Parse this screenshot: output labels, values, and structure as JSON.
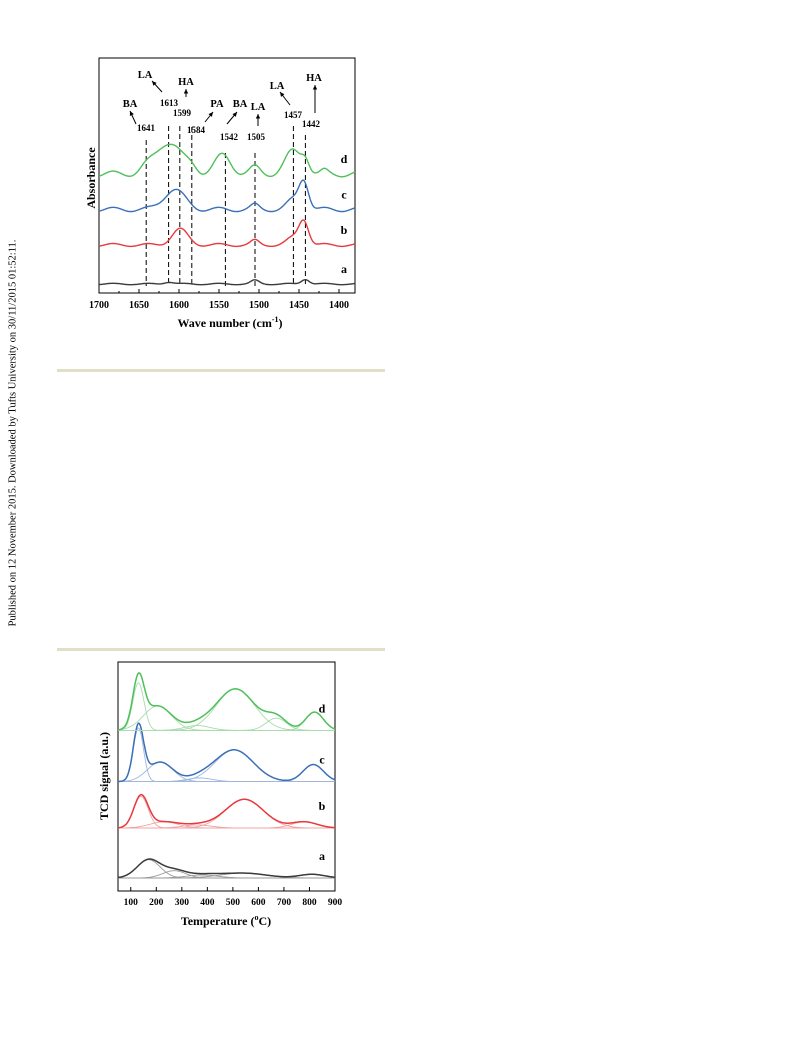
{
  "side_note": "Published on 12 November 2015. Downloaded by Tufts University on 30/11/2015 01:52:11.",
  "colors": {
    "a": "#3b3b3b",
    "b": "#e8393d",
    "c": "#3b6fb8",
    "d": "#4fbf5b",
    "fit_a": "#9a9a9a",
    "fit_b": "#f0a3a5",
    "fit_c": "#9fb7de",
    "fit_d": "#a8dcae",
    "separator": "#e2dfc7"
  },
  "chart_data": [
    {
      "type": "line",
      "xlabel": "Wave number (cm",
      "xlabel_sup": "-1",
      "xlabel_end": ")",
      "ylabel": "Absorbance",
      "xlim": [
        1700,
        1380
      ],
      "xticks": [
        "1700",
        "1650",
        "1600",
        "1550",
        "1500",
        "1450",
        "1400"
      ],
      "grid": false,
      "series": [
        {
          "name": "a",
          "offset": 0.0,
          "peaks": [
            [
              1613,
              0.03,
              6
            ],
            [
              1505,
              0.05,
              5
            ],
            [
              1442,
              0.07,
              5
            ]
          ]
        },
        {
          "name": "b",
          "offset": 0.55,
          "peaks": [
            [
              1599,
              0.22,
              10
            ],
            [
              1505,
              0.06,
              5
            ],
            [
              1457,
              0.1,
              8
            ],
            [
              1444,
              0.34,
              6
            ]
          ]
        },
        {
          "name": "c",
          "offset": 1.05,
          "peaks": [
            [
              1606,
              0.28,
              13
            ],
            [
              1505,
              0.06,
              5
            ],
            [
              1457,
              0.13,
              8
            ],
            [
              1444,
              0.4,
              6
            ]
          ]
        },
        {
          "name": "d",
          "offset": 1.55,
          "peaks": [
            [
              1641,
              0.06,
              8
            ],
            [
              1613,
              0.45,
              16
            ],
            [
              1584,
              0.08,
              7
            ],
            [
              1545,
              0.26,
              10
            ],
            [
              1505,
              0.09,
              6
            ],
            [
              1457,
              0.32,
              10
            ],
            [
              1442,
              0.18,
              5
            ],
            [
              1418,
              0.04,
              4
            ]
          ]
        }
      ],
      "vlines": [
        {
          "x": 1641,
          "labels": [
            "BA",
            "1641"
          ]
        },
        {
          "x": 1613,
          "labels": [
            "LA",
            "1613"
          ]
        },
        {
          "x": 1599,
          "labels": [
            "HA",
            "1599"
          ]
        },
        {
          "x": 1584,
          "labels": [
            "PA",
            "1584"
          ]
        },
        {
          "x": 1542,
          "labels": [
            "BA",
            "1542"
          ]
        },
        {
          "x": 1505,
          "labels": [
            "LA",
            "1505"
          ]
        },
        {
          "x": 1457,
          "labels": [
            "LA",
            "1457"
          ]
        },
        {
          "x": 1442,
          "labels": [
            "HA",
            "1442"
          ]
        }
      ]
    },
    {
      "type": "line",
      "xlabel": "Temperature (",
      "xlabel_sup": "o",
      "xlabel_end": "C)",
      "ylabel": "TCD signal (a.u.)",
      "xlim": [
        50,
        900
      ],
      "xticks": [
        100,
        200,
        300,
        400,
        500,
        600,
        700,
        800,
        900
      ],
      "grid": false,
      "series": [
        {
          "name": "a",
          "offset": 0.0,
          "components": [
            [
              170,
              0.3,
              45
            ],
            [
              270,
              0.12,
              45
            ],
            [
              380,
              0.05,
              60
            ],
            [
              540,
              0.08,
              90
            ],
            [
              810,
              0.06,
              50
            ]
          ]
        },
        {
          "name": "b",
          "offset": 0.82,
          "components": [
            [
              140,
              0.52,
              28
            ],
            [
              230,
              0.1,
              55
            ],
            [
              360,
              0.05,
              55
            ],
            [
              545,
              0.47,
              75
            ],
            [
              780,
              0.1,
              50
            ]
          ]
        },
        {
          "name": "c",
          "offset": 1.58,
          "components": [
            [
              130,
              0.88,
              20
            ],
            [
              215,
              0.32,
              50
            ],
            [
              370,
              0.06,
              50
            ],
            [
              505,
              0.52,
              75
            ],
            [
              815,
              0.28,
              40
            ]
          ]
        },
        {
          "name": "d",
          "offset": 2.42,
          "components": [
            [
              130,
              0.78,
              22
            ],
            [
              205,
              0.4,
              55
            ],
            [
              360,
              0.08,
              50
            ],
            [
              510,
              0.68,
              75
            ],
            [
              670,
              0.2,
              40
            ],
            [
              820,
              0.3,
              35
            ]
          ]
        }
      ]
    }
  ]
}
